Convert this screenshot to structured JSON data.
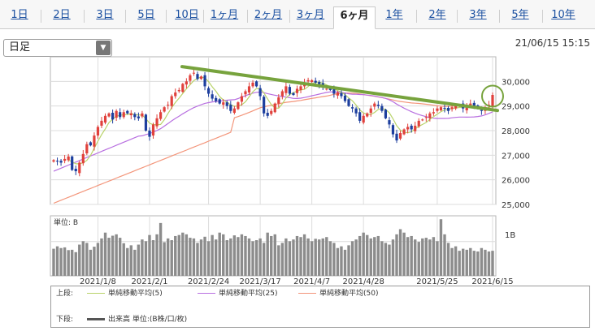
{
  "tabs": [
    {
      "label": "1日",
      "active": false
    },
    {
      "label": "2日",
      "active": false
    },
    {
      "label": "3日",
      "active": false
    },
    {
      "label": "5日",
      "active": false
    },
    {
      "label": "10日",
      "active": false
    },
    {
      "label": "1ヶ月",
      "active": false
    },
    {
      "label": "2ヶ月",
      "active": false
    },
    {
      "label": "3ヶ月",
      "active": false
    },
    {
      "label": "6ヶ月",
      "active": true
    },
    {
      "label": "1年",
      "active": false
    },
    {
      "label": "2年",
      "active": false
    },
    {
      "label": "3年",
      "active": false
    },
    {
      "label": "5年",
      "active": false
    },
    {
      "label": "10年",
      "active": false
    }
  ],
  "period_select": {
    "value": "日足"
  },
  "timestamp": "21/06/15 15:15",
  "legend": {
    "upper_label": "上段:",
    "lower_label": "下段:",
    "ma5": "単純移動平均(5)",
    "ma25": "単純移動平均(25)",
    "ma50": "単純移動平均(50)",
    "volume": "出来高 単位:(B株/口/枚)"
  },
  "colors": {
    "up": "#e0413c",
    "down": "#1d3f9e",
    "ma5": "#b9d36a",
    "ma25": "#b86fe0",
    "ma50": "#f3957a",
    "volume": "#8c8c8c",
    "annotation": "#77a33d"
  },
  "chart_data": [
    {
      "type": "candlestick",
      "ylim": [
        25000,
        31000
      ],
      "yticks": [
        25000,
        26000,
        27000,
        28000,
        29000,
        30000
      ],
      "ytick_labels": [
        "25,000",
        "26,000",
        "27,000",
        "28,000",
        "29,000",
        "30,000"
      ],
      "xtick_labels": [
        "2021/1/8",
        "2021/2/1",
        "2021/2/24",
        "2021/3/17",
        "2021/4/7",
        "2021/4/28",
        "2021/5/25",
        "2021/6/15"
      ],
      "xtick_index": [
        12,
        26,
        42,
        56,
        70,
        84,
        104,
        119
      ],
      "trendline": {
        "from": [
          0,
          30600
        ],
        "to": [
          119,
          28950
        ]
      },
      "highlight": {
        "index": 119,
        "value": 29400
      },
      "close": [
        26800,
        26750,
        26700,
        26850,
        26950,
        26400,
        26350,
        26700,
        27050,
        27450,
        27400,
        27800,
        28150,
        28400,
        28600,
        28700,
        28450,
        28800,
        28550,
        28750,
        28700,
        28700,
        28550,
        28500,
        28700,
        28000,
        27750,
        28250,
        28500,
        28750,
        28950,
        29050,
        29400,
        29550,
        29650,
        29900,
        30000,
        30250,
        30350,
        30100,
        30200,
        29800,
        29500,
        29300,
        29200,
        29100,
        29150,
        29000,
        28800,
        28900,
        29150,
        29400,
        29600,
        29800,
        29950,
        29800,
        29400,
        28700,
        28600,
        28800,
        29100,
        29350,
        29600,
        29800,
        29500,
        29450,
        29700,
        29800,
        29950,
        30050,
        30050,
        29950,
        29850,
        29750,
        29700,
        29650,
        29500,
        29550,
        29400,
        29200,
        29000,
        28900,
        28700,
        28400,
        28600,
        28700,
        28900,
        29100,
        29000,
        28800,
        28500,
        28250,
        27850,
        27600,
        27900,
        28050,
        28150,
        28050,
        28200,
        28400,
        28450,
        28550,
        28700,
        28750,
        28900,
        28950,
        28900,
        28800,
        28950,
        29000,
        29050,
        28900,
        29050,
        29100,
        28950,
        28900,
        28800,
        28950,
        29050,
        29450
      ]
    },
    {
      "type": "bar",
      "unit_label": "単位: B",
      "ytick_label": "1B",
      "ylim": [
        0,
        1.75
      ],
      "values": [
        0.79,
        0.86,
        0.81,
        0.83,
        0.75,
        0.76,
        0.69,
        0.91,
        1.01,
        0.96,
        0.76,
        0.85,
        0.96,
        1.09,
        1.26,
        1.11,
        1.17,
        1.21,
        1.11,
        0.95,
        0.81,
        0.89,
        0.76,
        0.91,
        1.06,
        1.01,
        1.19,
        1.04,
        1.21,
        1.54,
        0.98,
        1.09,
        1.04,
        1.16,
        1.19,
        1.26,
        1.21,
        1.11,
        1.09,
        0.96,
        1.06,
        1.14,
        1.01,
        1.19,
        1.06,
        1.26,
        1.21,
        1.04,
        1.09,
        1.18,
        1.13,
        1.21,
        1.16,
        1.09,
        1.01,
        1.04,
        1.09,
        0.96,
        1.26,
        1.16,
        1.21,
        0.89,
        0.96,
        1.09,
        1.01,
        1.06,
        1.16,
        1.13,
        1.21,
        1.09,
        1.01,
        1.08,
        1.06,
        1.09,
        1.13,
        1.01,
        0.96,
        0.81,
        0.86,
        0.76,
        0.89,
        1.01,
        1.06,
        1.16,
        1.26,
        1.19,
        1.09,
        1.13,
        1.16,
        1.01,
        0.96,
        0.91,
        1.06,
        1.21,
        1.36,
        1.26,
        1.13,
        1.16,
        1.06,
        0.99,
        1.09,
        1.11,
        1.06,
        1.13,
        1.01,
        1.65,
        1.21,
        0.96,
        0.81,
        0.86,
        0.73,
        0.79,
        0.76,
        0.81,
        0.73,
        0.71,
        0.81,
        0.76,
        0.71,
        0.73
      ]
    }
  ]
}
